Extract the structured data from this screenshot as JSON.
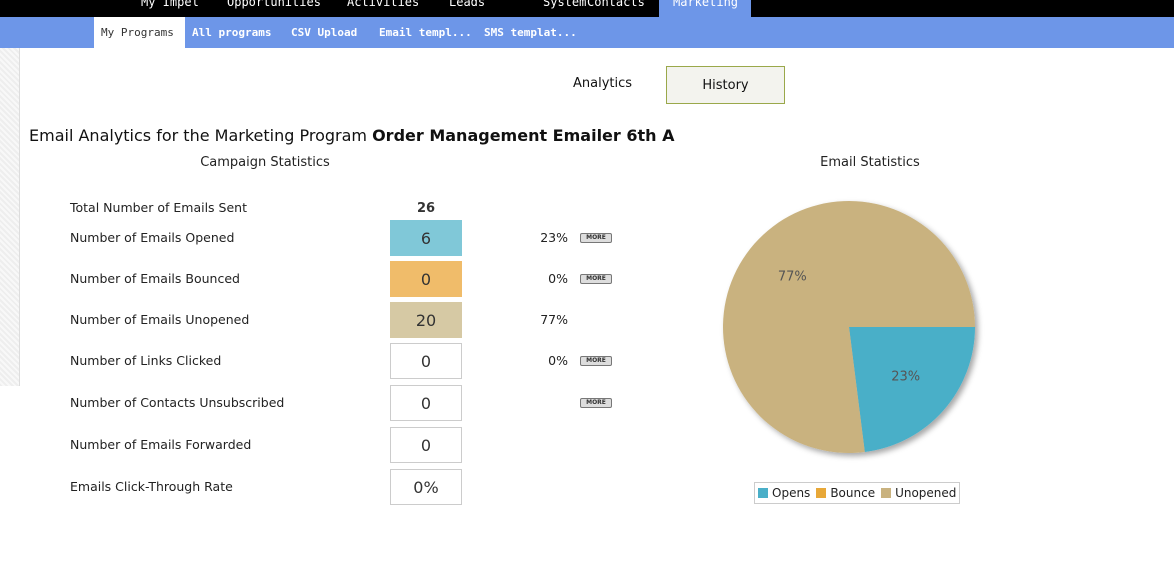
{
  "nav": {
    "items": [
      "My Impel",
      "Opportunities",
      "Activities",
      "Leads",
      "System",
      "Contacts",
      "Marketing"
    ]
  },
  "subnav": {
    "items": [
      "My Programs",
      "All programs",
      "CSV Upload",
      "Email templ...",
      "SMS templat..."
    ]
  },
  "tabs": [
    "Analytics",
    "History"
  ],
  "heading": {
    "prefix": "Email Analytics for the Marketing Program",
    "program": "Order Management Emailer 6th A"
  },
  "campaign": {
    "title": "Campaign Statistics",
    "rows": [
      {
        "label": "Total Number of Emails Sent",
        "value": "26"
      },
      {
        "label": "Number of Emails Opened",
        "value": "6",
        "percent": "23%",
        "more": "MORE"
      },
      {
        "label": "Number of Emails Bounced",
        "value": "0",
        "percent": "0%",
        "more": "MORE"
      },
      {
        "label": "Number of Emails Unopened",
        "value": "20",
        "percent": "77%"
      },
      {
        "label": "Number of Links Clicked",
        "value": "0",
        "percent": "0%",
        "more": "MORE"
      },
      {
        "label": "Number of Contacts Unsubscribed",
        "value": "0",
        "more": "MORE"
      },
      {
        "label": "Number of Emails Forwarded",
        "value": "0"
      },
      {
        "label": "Emails Click-Through Rate",
        "value": "0%"
      }
    ]
  },
  "chart_data": {
    "type": "pie",
    "title": "Email Statistics",
    "categories": [
      "Opens",
      "Bounce",
      "Unopened"
    ],
    "values": [
      23,
      0,
      77
    ],
    "value_labels": [
      "23%",
      null,
      "77%"
    ],
    "colors": [
      "#4aafc8",
      "#e8a838",
      "#c9b27f"
    ],
    "legend": "bottom"
  }
}
